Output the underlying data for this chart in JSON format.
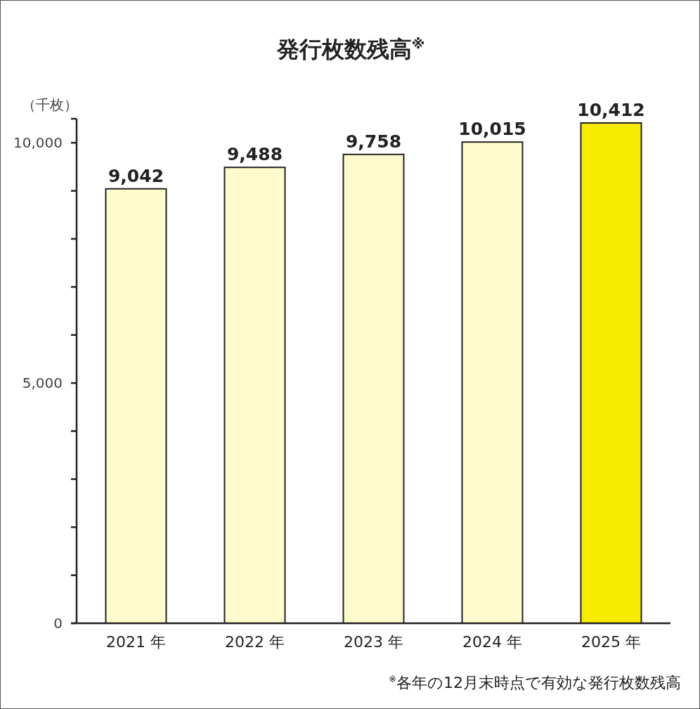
{
  "chart_data": {
    "type": "bar",
    "title": "発行枚数残高$^{※}$",
    "ylabel": "（千枚）",
    "categories": [
      "2021 年",
      "2022 年",
      "2023 年",
      "2024 年",
      "2025 年"
    ],
    "values": [
      9042,
      9488,
      9758,
      10015,
      10412
    ],
    "value_labels": [
      "9,042",
      "9,488",
      "9,758",
      "10,015",
      "10,412"
    ],
    "colors": [
      "#fffbcc",
      "#fffbcc",
      "#fffbcc",
      "#fffbcc",
      "#f7ec00"
    ],
    "ylim": [
      0,
      10500
    ],
    "yticks": [
      0,
      {
        "value": 1000,
        "label": null
      },
      {
        "value": 2000,
        "label": null
      },
      {
        "value": 3000,
        "label": null
      },
      {
        "value": 4000,
        "label": null
      },
      {
        "value": 5000,
        "label": "5,000"
      },
      {
        "value": 6000,
        "label": null
      },
      {
        "value": 7000,
        "label": null
      },
      {
        "value": 8000,
        "label": null
      },
      {
        "value": 9000,
        "label": null
      },
      {
        "value": 10000,
        "label": "10,000"
      }
    ],
    "annotations": [
      "$^{※}$各年の12月末時点で有効な発行枚数残高"
    ]
  }
}
